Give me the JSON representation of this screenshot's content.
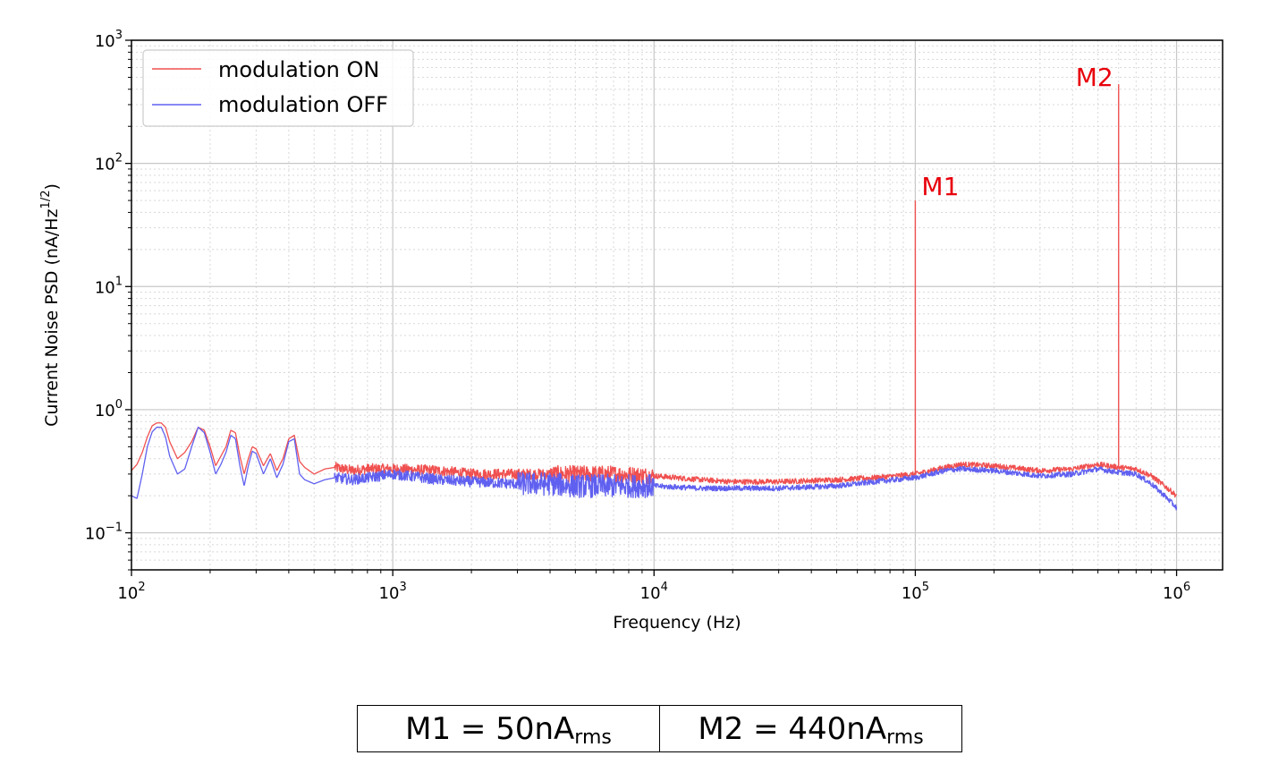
{
  "chart_data": {
    "type": "line",
    "xscale": "log",
    "yscale": "log",
    "xlim": [
      100,
      1500000
    ],
    "ylim": [
      0.05,
      1000
    ],
    "xlabel": "Frequency (Hz)",
    "ylabel": "Current Noise PSD (nA/Hz",
    "ylabel_sup": "1/2",
    "ylabel_end": ")",
    "x_ticks": [
      {
        "value": 100,
        "base": "10",
        "exp": "2"
      },
      {
        "value": 1000,
        "base": "10",
        "exp": "3"
      },
      {
        "value": 10000,
        "base": "10",
        "exp": "4"
      },
      {
        "value": 100000,
        "base": "10",
        "exp": "5"
      },
      {
        "value": 1000000,
        "base": "10",
        "exp": "6"
      }
    ],
    "y_ticks": [
      {
        "value": 0.1,
        "base": "10",
        "exp": "−1"
      },
      {
        "value": 1,
        "base": "10",
        "exp": "0"
      },
      {
        "value": 10,
        "base": "10",
        "exp": "1"
      },
      {
        "value": 100,
        "base": "10",
        "exp": "2"
      },
      {
        "value": 1000,
        "base": "10",
        "exp": "3"
      }
    ],
    "grid": true,
    "legend_position": "top-left",
    "series": [
      {
        "name": "modulation ON",
        "color": "#f05050",
        "x": [
          100,
          105,
          110,
          115,
          120,
          125,
          130,
          135,
          140,
          150,
          160,
          170,
          180,
          190,
          200,
          210,
          220,
          230,
          240,
          250,
          260,
          270,
          280,
          290,
          300,
          320,
          340,
          360,
          380,
          400,
          420,
          440,
          460,
          500,
          550,
          600,
          700,
          800,
          900,
          1000,
          1500,
          2000,
          3000,
          4000,
          5000,
          7000,
          10000,
          15000,
          20000,
          30000,
          50000,
          70000,
          100000,
          130000,
          150000,
          200000,
          300000,
          400000,
          500000,
          600000,
          700000,
          800000,
          900000,
          1000000
        ],
        "values": [
          0.32,
          0.36,
          0.45,
          0.6,
          0.74,
          0.78,
          0.78,
          0.72,
          0.55,
          0.4,
          0.45,
          0.55,
          0.72,
          0.68,
          0.5,
          0.35,
          0.42,
          0.5,
          0.68,
          0.65,
          0.42,
          0.3,
          0.4,
          0.5,
          0.48,
          0.35,
          0.44,
          0.32,
          0.4,
          0.58,
          0.62,
          0.38,
          0.34,
          0.3,
          0.33,
          0.34,
          0.32,
          0.33,
          0.33,
          0.33,
          0.32,
          0.3,
          0.3,
          0.3,
          0.3,
          0.3,
          0.29,
          0.27,
          0.26,
          0.26,
          0.27,
          0.28,
          0.3,
          0.34,
          0.36,
          0.35,
          0.32,
          0.33,
          0.36,
          0.34,
          0.33,
          0.29,
          0.24,
          0.2
        ],
        "peaks": [
          {
            "x": 100000,
            "value": 50,
            "label": "M1"
          },
          {
            "x": 600000,
            "value": 440,
            "label": "M2"
          }
        ]
      },
      {
        "name": "modulation OFF",
        "color": "#6060f0",
        "x": [
          100,
          105,
          110,
          115,
          120,
          125,
          130,
          135,
          140,
          150,
          160,
          170,
          180,
          190,
          200,
          210,
          220,
          230,
          240,
          250,
          260,
          270,
          280,
          290,
          300,
          320,
          340,
          360,
          380,
          400,
          420,
          440,
          460,
          500,
          550,
          600,
          700,
          800,
          900,
          1000,
          1500,
          2000,
          3000,
          4000,
          5000,
          7000,
          10000,
          15000,
          20000,
          30000,
          50000,
          70000,
          100000,
          130000,
          150000,
          200000,
          300000,
          400000,
          500000,
          600000,
          700000,
          800000,
          900000,
          1000000
        ],
        "values": [
          0.2,
          0.19,
          0.3,
          0.5,
          0.66,
          0.72,
          0.72,
          0.6,
          0.42,
          0.3,
          0.33,
          0.5,
          0.72,
          0.65,
          0.45,
          0.3,
          0.36,
          0.45,
          0.62,
          0.58,
          0.35,
          0.24,
          0.35,
          0.46,
          0.44,
          0.3,
          0.4,
          0.28,
          0.36,
          0.55,
          0.58,
          0.3,
          0.27,
          0.25,
          0.27,
          0.28,
          0.27,
          0.28,
          0.29,
          0.3,
          0.27,
          0.26,
          0.25,
          0.25,
          0.24,
          0.24,
          0.24,
          0.23,
          0.23,
          0.23,
          0.24,
          0.26,
          0.28,
          0.32,
          0.33,
          0.32,
          0.29,
          0.3,
          0.33,
          0.31,
          0.3,
          0.25,
          0.2,
          0.16
        ]
      }
    ]
  },
  "table": {
    "m1_label": "M1 = 50nA",
    "m1_sub": "rms",
    "m2_label": "M2 = 440nA",
    "m2_sub": "rms"
  }
}
